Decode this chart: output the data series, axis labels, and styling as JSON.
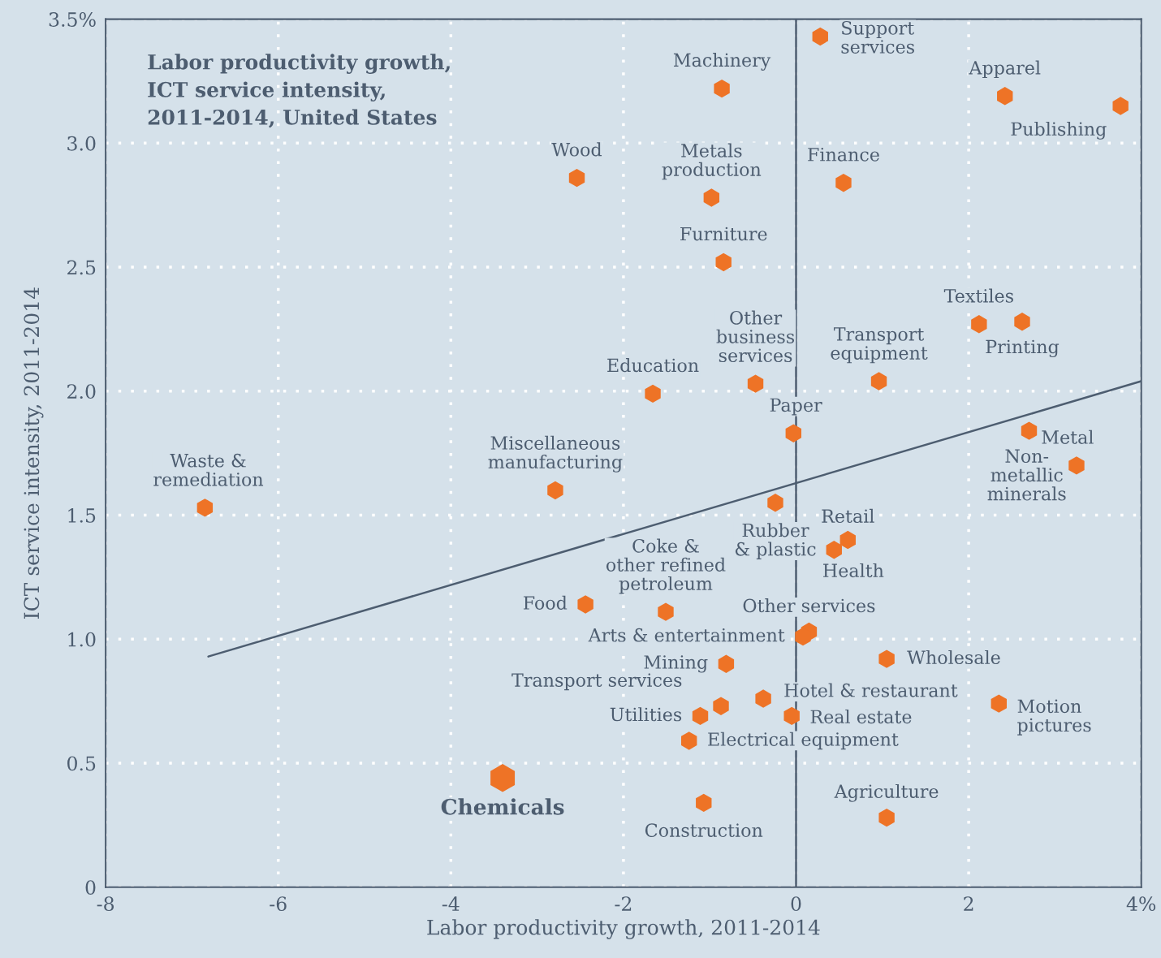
{
  "chart_data": {
    "type": "scatter",
    "title": "Labor productivity growth,\nICT service intensity,\n2011-2014, United States",
    "xlabel": "Labor productivity growth, 2011-2014",
    "ylabel": "ICT service intensity, 2011-2014",
    "xlim": [
      -8,
      4
    ],
    "ylim": [
      0,
      3.5
    ],
    "xticks": [
      -8,
      -6,
      -4,
      -2,
      0,
      2,
      {
        "value": 4,
        "label": "4%"
      }
    ],
    "yticks": [
      0,
      0.5,
      {
        "value": 1,
        "label": "1.0"
      },
      1.5,
      {
        "value": 2,
        "label": "2.0"
      },
      2.5,
      {
        "value": 3,
        "label": "3.0"
      },
      {
        "value": 3.5,
        "label": "3.5%"
      }
    ],
    "grid": true,
    "ref_lines": [
      {
        "axis": "x",
        "value": 0,
        "color": "#4d5d70",
        "line_style": "solid"
      }
    ],
    "series": [
      {
        "color": "#ee7326",
        "x": [
          0.28,
          -0.86,
          2.42,
          3.76,
          -2.54,
          -0.98,
          0.55,
          -0.84,
          2.12,
          2.62,
          -0.47,
          0.96,
          -1.66,
          -0.03,
          2.7,
          3.25,
          -2.79,
          -6.85,
          -0.24,
          0.6,
          0.44,
          -1.51,
          -2.44,
          0.15,
          0.08,
          -0.81,
          1.05,
          -0.87,
          -0.38,
          -1.11,
          -0.05,
          2.35,
          -1.24,
          -1.07,
          1.05
        ],
        "values": [
          3.43,
          3.22,
          3.19,
          3.15,
          2.86,
          2.78,
          2.84,
          2.52,
          2.27,
          2.28,
          2.03,
          2.04,
          1.99,
          1.83,
          1.84,
          1.7,
          1.6,
          1.53,
          1.55,
          1.4,
          1.36,
          1.11,
          1.14,
          1.03,
          1.01,
          0.9,
          0.92,
          0.73,
          0.76,
          0.69,
          0.69,
          0.74,
          0.59,
          0.34,
          0.28
        ]
      },
      {
        "color": "#ee7326",
        "x": [
          -3.4
        ],
        "values": [
          0.44
        ]
      },
      {
        "type": "line",
        "color": "#4d5d70",
        "x": [
          -6.81,
          4.0
        ],
        "values": [
          0.93,
          2.04
        ]
      }
    ],
    "annotations": [
      {
        "text": "Support\nservices",
        "x": 0.28,
        "y": 3.43
      },
      {
        "text": "Machinery",
        "x": -0.86,
        "y": 3.22
      },
      {
        "text": "Apparel",
        "x": 2.42,
        "y": 3.19
      },
      {
        "text": "Publishing",
        "x": 3.76,
        "y": 3.15
      },
      {
        "text": "Wood",
        "x": -2.54,
        "y": 2.86
      },
      {
        "text": "Metals\nproduction",
        "x": -0.98,
        "y": 2.78
      },
      {
        "text": "Finance",
        "x": 0.55,
        "y": 2.84
      },
      {
        "text": "Furniture",
        "x": -0.84,
        "y": 2.52
      },
      {
        "text": "Textiles",
        "x": 2.12,
        "y": 2.27
      },
      {
        "text": "Printing",
        "x": 2.62,
        "y": 2.28
      },
      {
        "text": "Other\nbusiness\nservices",
        "x": -0.47,
        "y": 2.03
      },
      {
        "text": "Transport\nequipment",
        "x": 0.96,
        "y": 2.04
      },
      {
        "text": "Education",
        "x": -1.66,
        "y": 1.99
      },
      {
        "text": "Paper",
        "x": -0.03,
        "y": 1.83
      },
      {
        "text": "Non-\nmetallic\nminerals",
        "x": 2.7,
        "y": 1.84
      },
      {
        "text": "Metal",
        "x": 3.25,
        "y": 1.7
      },
      {
        "text": "Miscellaneous\nmanufacturing",
        "x": -2.79,
        "y": 1.6
      },
      {
        "text": "Waste &\nremediation",
        "x": -6.85,
        "y": 1.53
      },
      {
        "text": "Rubber\n& plastic",
        "x": -0.24,
        "y": 1.55
      },
      {
        "text": "Retail",
        "x": 0.6,
        "y": 1.4
      },
      {
        "text": "Health",
        "x": 0.44,
        "y": 1.36
      },
      {
        "text": "Coke &\nother refined\npetroleum",
        "x": -1.51,
        "y": 1.11
      },
      {
        "text": "Food",
        "x": -2.44,
        "y": 1.14
      },
      {
        "text": "Other services",
        "x": 0.15,
        "y": 1.03
      },
      {
        "text": "Arts & entertainment",
        "x": 0.08,
        "y": 1.01
      },
      {
        "text": "Mining",
        "x": -0.81,
        "y": 0.9
      },
      {
        "text": "Wholesale",
        "x": 1.05,
        "y": 0.92
      },
      {
        "text": "Transport services",
        "x": -0.87,
        "y": 0.73
      },
      {
        "text": "Hotel & restaurant",
        "x": -0.38,
        "y": 0.76
      },
      {
        "text": "Utilities",
        "x": -1.11,
        "y": 0.69
      },
      {
        "text": "Real estate",
        "x": -0.05,
        "y": 0.69
      },
      {
        "text": "Motion\npictures",
        "x": 2.35,
        "y": 0.74
      },
      {
        "text": "Electrical equipment",
        "x": -1.24,
        "y": 0.59
      },
      {
        "text": "Construction",
        "x": -1.07,
        "y": 0.34
      },
      {
        "text": "Agriculture",
        "x": 1.05,
        "y": 0.28
      },
      {
        "text": "Chemicals",
        "x": -3.4,
        "y": 0.44
      }
    ]
  }
}
